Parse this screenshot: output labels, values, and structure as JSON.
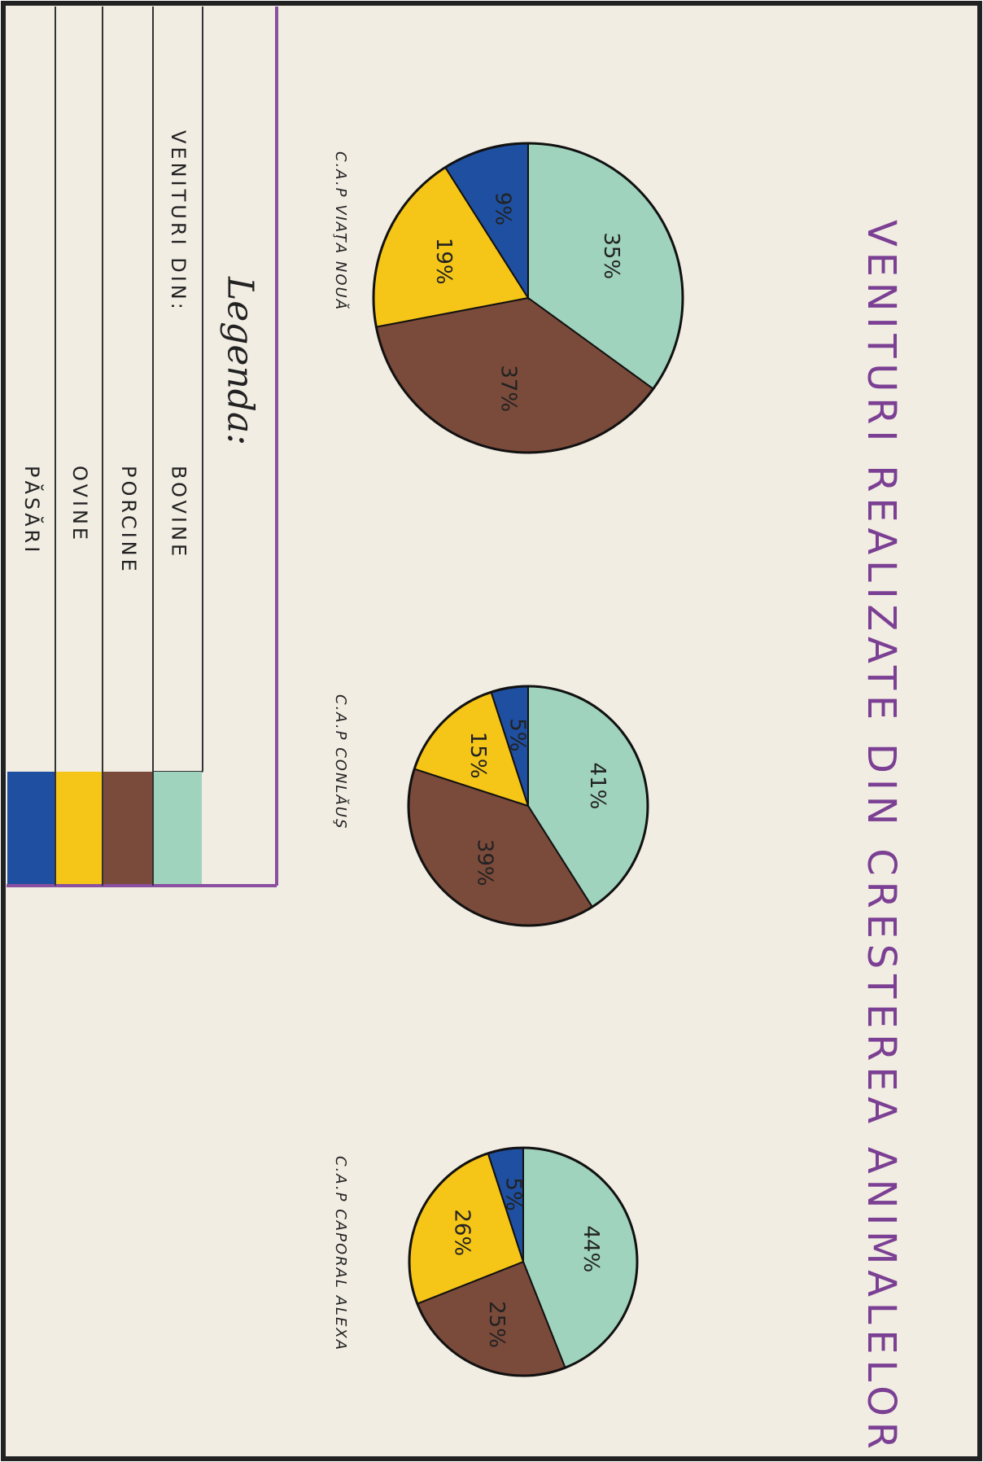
{
  "title": "VENITURI REALIZATE DIN CRESTEREA ANIMALELOR",
  "legend": {
    "title": "Legenda:",
    "heading": "VENITURI DIN:",
    "items": [
      {
        "name": "BOVINE",
        "color": "#9fd3bd"
      },
      {
        "name": "PORCINE",
        "color": "#7a4a3a"
      },
      {
        "name": "OVINE",
        "color": "#f5c518"
      },
      {
        "name": "PĂSĂRI",
        "color": "#1f4fa0"
      }
    ]
  },
  "chart_data": [
    {
      "type": "pie",
      "title": "C.A.P VIAŢA NOUĂ",
      "values": [
        35,
        37,
        19,
        9
      ],
      "value_labels": [
        "35%",
        "37%",
        "19%",
        "9%"
      ]
    },
    {
      "type": "pie",
      "title": "C.A.P CONLĂUŞ",
      "values": [
        41,
        39,
        15,
        5
      ],
      "value_labels": [
        "41%",
        "39%",
        "15%",
        "5%"
      ]
    },
    {
      "type": "pie",
      "title": "C.A.P CAPORAL ALEXA",
      "values": [
        44,
        25,
        26,
        5
      ],
      "value_labels": [
        "44%",
        "25%",
        "26%",
        "5%"
      ]
    }
  ]
}
